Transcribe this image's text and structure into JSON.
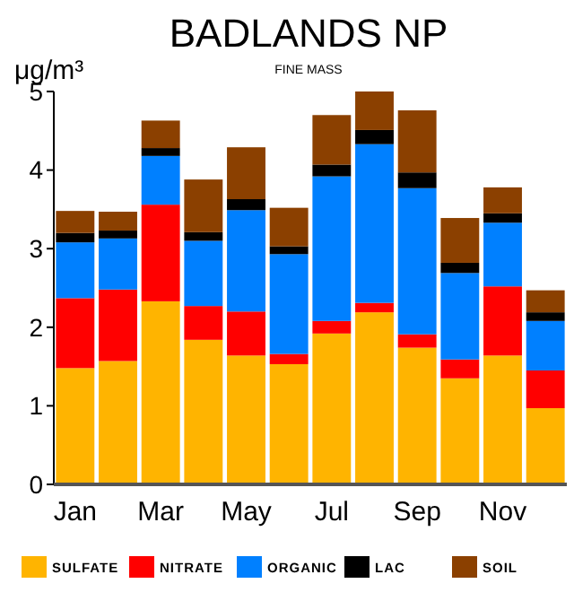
{
  "chart_data": {
    "type": "bar",
    "title": "BADLANDS NP",
    "subtitle": "FINE MASS",
    "ylabel": "μg/m³",
    "stacked": true,
    "legend": "bottom",
    "grid": false,
    "categories": [
      "Jan",
      null,
      "Mar",
      null,
      "May",
      null,
      "Jul",
      null,
      "Sep",
      null,
      "Nov",
      null
    ],
    "ylim": [
      0,
      5
    ],
    "yticks": [
      0,
      1,
      2,
      3,
      4,
      5
    ],
    "series": [
      {
        "name": "SULFATE",
        "color": "#ffb400",
        "values": [
          1.48,
          1.57,
          2.33,
          1.84,
          1.64,
          1.53,
          1.92,
          2.19,
          1.74,
          1.35,
          1.64,
          0.97
        ]
      },
      {
        "name": "NITRATE",
        "color": "#ff0000",
        "values": [
          0.89,
          0.91,
          1.23,
          0.43,
          0.56,
          0.13,
          0.16,
          0.12,
          0.17,
          0.24,
          0.88,
          0.48
        ]
      },
      {
        "name": "ORGANIC",
        "color": "#0080ff",
        "values": [
          0.71,
          0.65,
          0.62,
          0.83,
          1.29,
          1.27,
          1.84,
          2.02,
          1.86,
          1.1,
          0.81,
          0.63
        ]
      },
      {
        "name": "LAC",
        "color": "#000000",
        "values": [
          0.12,
          0.1,
          0.1,
          0.11,
          0.14,
          0.1,
          0.15,
          0.18,
          0.2,
          0.13,
          0.12,
          0.11
        ]
      },
      {
        "name": "SOIL",
        "color": "#8b4000",
        "values": [
          0.28,
          0.24,
          0.35,
          0.67,
          0.66,
          0.49,
          0.63,
          0.49,
          0.79,
          0.57,
          0.33,
          0.28
        ]
      }
    ]
  }
}
